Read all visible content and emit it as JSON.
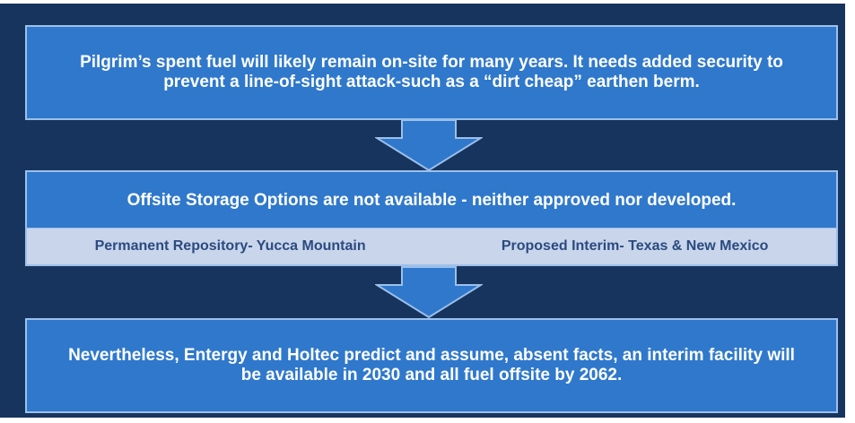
{
  "boxes": [
    {
      "text": "Pilgrim’s spent fuel will likely remain on-site for many years. It needs added security to prevent a line-of-sight attack-such as a “dirt cheap” earthen berm."
    },
    {
      "text": "Offsite Storage Options are not available - neither approved nor developed.",
      "items": [
        "Permanent Repository- Yucca Mountain",
        "Proposed Interim- Texas & New Mexico"
      ]
    },
    {
      "text": "Nevertheless, Entergy and Holtec predict and assume, absent facts, an interim facility will be available in 2030 and all fuel offsite by 2062."
    }
  ]
}
